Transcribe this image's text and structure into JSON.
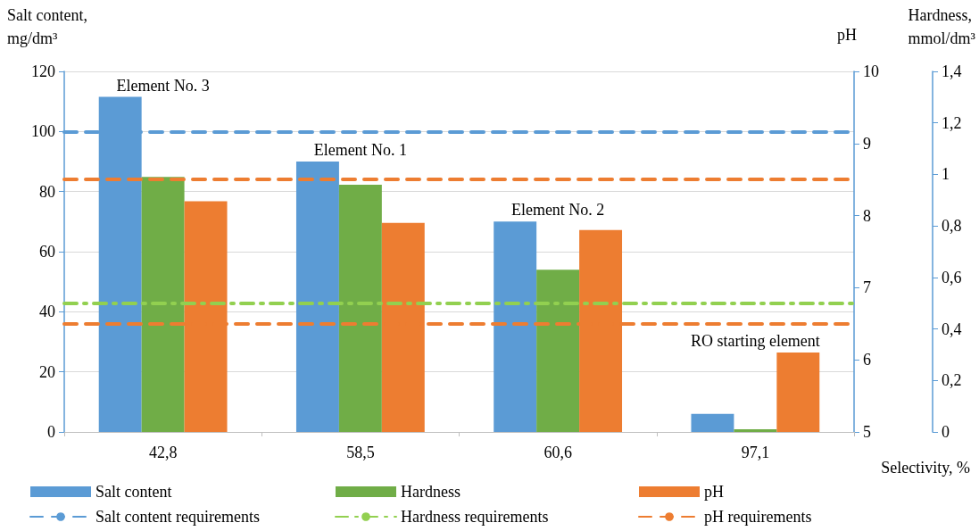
{
  "chart_data": {
    "type": "bar",
    "xlabel": "Selectivity, %",
    "ylabel": "Salt content, mg/dm³",
    "y2label": "pH",
    "y3label": "Hardness, mmol/dm³",
    "categories": [
      "42,8",
      "58,5",
      "60,6",
      "97,1"
    ],
    "series": [
      {
        "name": "Salt content",
        "color": "#5b9bd5",
        "values": [
          111.5,
          90,
          70,
          6
        ]
      },
      {
        "name": "Hardness",
        "color": "#70ad47",
        "axis": "y3",
        "values": [
          0.99,
          0.96,
          0.63,
          0.01
        ]
      },
      {
        "name": "pH",
        "color": "#ed7d31",
        "axis": "y2",
        "values": [
          8.2,
          7.9,
          7.8,
          6.1
        ]
      }
    ],
    "ylim": [
      0,
      120
    ],
    "yticks": [
      0,
      20,
      40,
      60,
      80,
      100,
      120
    ],
    "y2lim": [
      5,
      10
    ],
    "y2ticks": [
      5,
      6,
      7,
      8,
      9,
      10
    ],
    "y3lim": [
      0,
      1.4
    ],
    "y3ticks": [
      0,
      {
        "value": 0.2,
        "label": "0,2"
      },
      {
        "value": 0.4,
        "label": "0,4"
      },
      {
        "value": 0.6,
        "label": "0,6"
      },
      {
        "value": 0.8,
        "label": "0,8"
      },
      1,
      {
        "value": 1.2,
        "label": "1,2"
      },
      {
        "value": 1.4,
        "label": "1,4"
      }
    ],
    "ref_lines": [
      {
        "axis": "y",
        "value": 100,
        "label": "Salt content requirements",
        "color": "#5b9bd5",
        "line_style": "dashed"
      },
      {
        "axis": "y3",
        "value": 0.5,
        "label": "Hardness requirements",
        "color": "#92d050",
        "line_style": "dashdot"
      },
      {
        "axis": "y2",
        "value": 8.5,
        "label": "pH requirements",
        "color": "#ed7d31",
        "line_style": "dashed"
      },
      {
        "axis": "y2",
        "value": 6.5,
        "color": "#ed7d31",
        "line_style": "dashed"
      }
    ],
    "annotations": [
      "Element No. 3",
      "Element No. 1",
      "Element No. 2",
      "RO starting element"
    ],
    "grid": "y",
    "legend": "bottom"
  }
}
